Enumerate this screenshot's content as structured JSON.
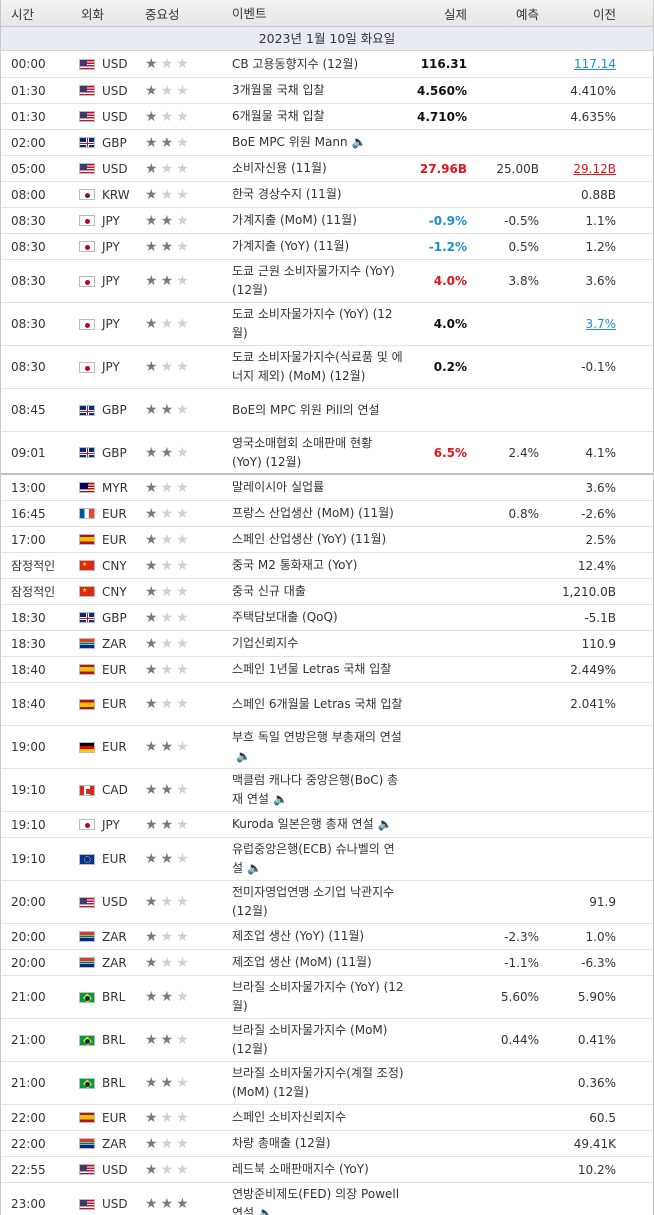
{
  "headers": {
    "time": "시간",
    "currency": "외화",
    "importance": "중요성",
    "event": "이벤트",
    "actual": "실제",
    "forecast": "예측",
    "previous": "이전"
  },
  "day_label": "2023년 1월 10일 화요일",
  "colors": {
    "positive": "#e3141c",
    "negative": "#1c8ed6",
    "neutral": "#111111"
  },
  "rows": [
    {
      "time": "00:00",
      "flag": "us",
      "cur": "USD",
      "imp": 1,
      "event": "CB 고용동향지수 (12월)",
      "actual": "116.31",
      "actual_color": "neutral",
      "forecast": "",
      "previous": "117.14",
      "prev_style": "link",
      "h": 27
    },
    {
      "time": "01:30",
      "flag": "us",
      "cur": "USD",
      "imp": 1,
      "event": "3개월물 국채 입찰",
      "actual": "4.560%",
      "actual_color": "neutral",
      "forecast": "",
      "previous": "4.410%",
      "prev_style": "",
      "h": 26
    },
    {
      "time": "01:30",
      "flag": "us",
      "cur": "USD",
      "imp": 1,
      "event": "6개월물 국채 입찰",
      "actual": "4.710%",
      "actual_color": "neutral",
      "forecast": "",
      "previous": "4.635%",
      "prev_style": "",
      "h": 26
    },
    {
      "time": "02:00",
      "flag": "gb",
      "cur": "GBP",
      "imp": 2,
      "event": "BoE MPC 위원 Mann",
      "speaker": true,
      "actual": "",
      "forecast": "",
      "previous": "",
      "prev_style": "",
      "h": 26
    },
    {
      "time": "05:00",
      "flag": "us",
      "cur": "USD",
      "imp": 1,
      "event": "소비자신용 (11월)",
      "actual": "27.96B",
      "actual_color": "positive",
      "forecast": "25.00B",
      "previous": "29.12B",
      "prev_style": "linkred",
      "h": 26
    },
    {
      "time": "08:00",
      "flag": "kr",
      "cur": "KRW",
      "imp": 1,
      "event": "한국 경상수지 (11월)",
      "actual": "",
      "forecast": "",
      "previous": "0.88B",
      "prev_style": "",
      "h": 26
    },
    {
      "time": "08:30",
      "flag": "jp",
      "cur": "JPY",
      "imp": 2,
      "event": "가계지출 (MoM) (11월)",
      "actual": "-0.9%",
      "actual_color": "negative",
      "forecast": "-0.5%",
      "previous": "1.1%",
      "prev_style": "",
      "h": 26
    },
    {
      "time": "08:30",
      "flag": "jp",
      "cur": "JPY",
      "imp": 2,
      "event": "가계지출 (YoY) (11월)",
      "actual": "-1.2%",
      "actual_color": "negative",
      "forecast": "0.5%",
      "previous": "1.2%",
      "prev_style": "",
      "h": 26
    },
    {
      "time": "08:30",
      "flag": "jp",
      "cur": "JPY",
      "imp": 2,
      "event": "도쿄 근원 소비자물가지수 (YoY) (12월)",
      "actual": "4.0%",
      "actual_color": "positive",
      "forecast": "3.8%",
      "previous": "3.6%",
      "prev_style": "",
      "h": 43
    },
    {
      "time": "08:30",
      "flag": "jp",
      "cur": "JPY",
      "imp": 1,
      "event": "도쿄 소비자물가지수 (YoY) (12월)",
      "actual": "4.0%",
      "actual_color": "neutral",
      "forecast": "",
      "previous": "3.7%",
      "prev_style": "link",
      "h": 43
    },
    {
      "time": "08:30",
      "flag": "jp",
      "cur": "JPY",
      "imp": 1,
      "event": "도쿄 소비자물가지수(식료품 및 에너지 제외) (MoM) (12월)",
      "actual": "0.2%",
      "actual_color": "neutral",
      "forecast": "",
      "previous": "-0.1%",
      "prev_style": "",
      "h": 43
    },
    {
      "time": "08:45",
      "flag": "gb",
      "cur": "GBP",
      "imp": 2,
      "event": "BoE의 MPC 위원 Pill의 연설",
      "actual": "",
      "forecast": "",
      "previous": "",
      "prev_style": "",
      "h": 43
    },
    {
      "time": "09:01",
      "flag": "gb",
      "cur": "GBP",
      "imp": 2,
      "event": "영국소매협회 소매판매 현황 (YoY) (12월)",
      "actual": "6.5%",
      "actual_color": "positive",
      "forecast": "2.4%",
      "previous": "4.1%",
      "prev_style": "",
      "h": 43,
      "thick": true
    },
    {
      "time": "13:00",
      "flag": "my",
      "cur": "MYR",
      "imp": 1,
      "event": "말레이시아 실업률",
      "actual": "",
      "forecast": "",
      "previous": "3.6%",
      "prev_style": "",
      "h": 26
    },
    {
      "time": "16:45",
      "flag": "fr",
      "cur": "EUR",
      "imp": 1,
      "event": "프랑스 산업생산 (MoM) (11월)",
      "actual": "",
      "forecast": "0.8%",
      "previous": "-2.6%",
      "prev_style": "",
      "h": 26
    },
    {
      "time": "17:00",
      "flag": "es",
      "cur": "EUR",
      "imp": 1,
      "event": "스페인 산업생산 (YoY) (11월)",
      "actual": "",
      "forecast": "",
      "previous": "2.5%",
      "prev_style": "",
      "h": 26
    },
    {
      "time": "잠정적인",
      "flag": "cn",
      "cur": "CNY",
      "imp": 1,
      "event": "중국 M2 통화재고 (YoY)",
      "actual": "",
      "forecast": "",
      "previous": "12.4%",
      "prev_style": "",
      "h": 26
    },
    {
      "time": "잠정적인",
      "flag": "cn",
      "cur": "CNY",
      "imp": 1,
      "event": "중국 신규 대출",
      "actual": "",
      "forecast": "",
      "previous": "1,210.0B",
      "prev_style": "",
      "h": 26
    },
    {
      "time": "18:30",
      "flag": "gb",
      "cur": "GBP",
      "imp": 1,
      "event": "주택담보대출 (QoQ)",
      "actual": "",
      "forecast": "",
      "previous": "-5.1B",
      "prev_style": "",
      "h": 26
    },
    {
      "time": "18:30",
      "flag": "za",
      "cur": "ZAR",
      "imp": 1,
      "event": "기업신뢰지수",
      "actual": "",
      "forecast": "",
      "previous": "110.9",
      "prev_style": "",
      "h": 26
    },
    {
      "time": "18:40",
      "flag": "es",
      "cur": "EUR",
      "imp": 1,
      "event": "스페인 1년물 Letras 국채 입찰",
      "actual": "",
      "forecast": "",
      "previous": "2.449%",
      "prev_style": "",
      "h": 26
    },
    {
      "time": "18:40",
      "flag": "es",
      "cur": "EUR",
      "imp": 1,
      "event": "스페인 6개월물 Letras 국채 입찰",
      "actual": "",
      "forecast": "",
      "previous": "2.041%",
      "prev_style": "",
      "h": 43
    },
    {
      "time": "19:00",
      "flag": "de",
      "cur": "EUR",
      "imp": 2,
      "event": "부흐 독일 연방은행 부총재의 연설",
      "speaker": true,
      "actual": "",
      "forecast": "",
      "previous": "",
      "prev_style": "",
      "h": 43
    },
    {
      "time": "19:10",
      "flag": "ca",
      "cur": "CAD",
      "imp": 2,
      "event": "맥클럼 캐나다 중앙은행(BoC) 총재 연설",
      "speaker": true,
      "actual": "",
      "forecast": "",
      "previous": "",
      "prev_style": "",
      "h": 43
    },
    {
      "time": "19:10",
      "flag": "jp",
      "cur": "JPY",
      "imp": 2,
      "event": "Kuroda 일본은행 총재 연설",
      "speaker": true,
      "actual": "",
      "forecast": "",
      "previous": "",
      "prev_style": "",
      "h": 26
    },
    {
      "time": "19:10",
      "flag": "eu",
      "cur": "EUR",
      "imp": 2,
      "event": "유럽중앙은행(ECB) 슈나벨의 연설",
      "speaker": true,
      "actual": "",
      "forecast": "",
      "previous": "",
      "prev_style": "",
      "h": 43
    },
    {
      "time": "20:00",
      "flag": "us",
      "cur": "USD",
      "imp": 1,
      "event": "전미자영업연맹 소기업 낙관지수 (12월)",
      "actual": "",
      "forecast": "",
      "previous": "91.9",
      "prev_style": "",
      "h": 43
    },
    {
      "time": "20:00",
      "flag": "za",
      "cur": "ZAR",
      "imp": 1,
      "event": "제조업 생산 (YoY) (11월)",
      "actual": "",
      "forecast": "-2.3%",
      "previous": "1.0%",
      "prev_style": "",
      "h": 26
    },
    {
      "time": "20:00",
      "flag": "za",
      "cur": "ZAR",
      "imp": 1,
      "event": "제조업 생산 (MoM) (11월)",
      "actual": "",
      "forecast": "-1.1%",
      "previous": "-6.3%",
      "prev_style": "",
      "h": 26
    },
    {
      "time": "21:00",
      "flag": "br",
      "cur": "BRL",
      "imp": 2,
      "event": "브라질 소비자물가지수 (YoY) (12월)",
      "actual": "",
      "forecast": "5.60%",
      "previous": "5.90%",
      "prev_style": "",
      "h": 43
    },
    {
      "time": "21:00",
      "flag": "br",
      "cur": "BRL",
      "imp": 2,
      "event": "브라질 소비자물가지수 (MoM) (12월)",
      "actual": "",
      "forecast": "0.44%",
      "previous": "0.41%",
      "prev_style": "",
      "h": 43
    },
    {
      "time": "21:00",
      "flag": "br",
      "cur": "BRL",
      "imp": 2,
      "event": "브라질 소비자물가지수(계절 조정) (MoM) (12월)",
      "actual": "",
      "forecast": "",
      "previous": "0.36%",
      "prev_style": "",
      "h": 43
    },
    {
      "time": "22:00",
      "flag": "es",
      "cur": "EUR",
      "imp": 1,
      "event": "스페인 소비자신뢰지수",
      "actual": "",
      "forecast": "",
      "previous": "60.5",
      "prev_style": "",
      "h": 26
    },
    {
      "time": "22:00",
      "flag": "za",
      "cur": "ZAR",
      "imp": 1,
      "event": "차량 총매출 (12월)",
      "actual": "",
      "forecast": "",
      "previous": "49.41K",
      "prev_style": "",
      "h": 26
    },
    {
      "time": "22:55",
      "flag": "us",
      "cur": "USD",
      "imp": 1,
      "event": "레드북 소매판매지수 (YoY)",
      "actual": "",
      "forecast": "",
      "previous": "10.2%",
      "prev_style": "",
      "h": 26
    },
    {
      "time": "23:00",
      "flag": "us",
      "cur": "USD",
      "imp": 3,
      "event": "연방준비제도(FED) 의장 Powell 연설",
      "speaker": true,
      "actual": "",
      "forecast": "",
      "previous": "",
      "prev_style": "",
      "h": 43
    }
  ]
}
